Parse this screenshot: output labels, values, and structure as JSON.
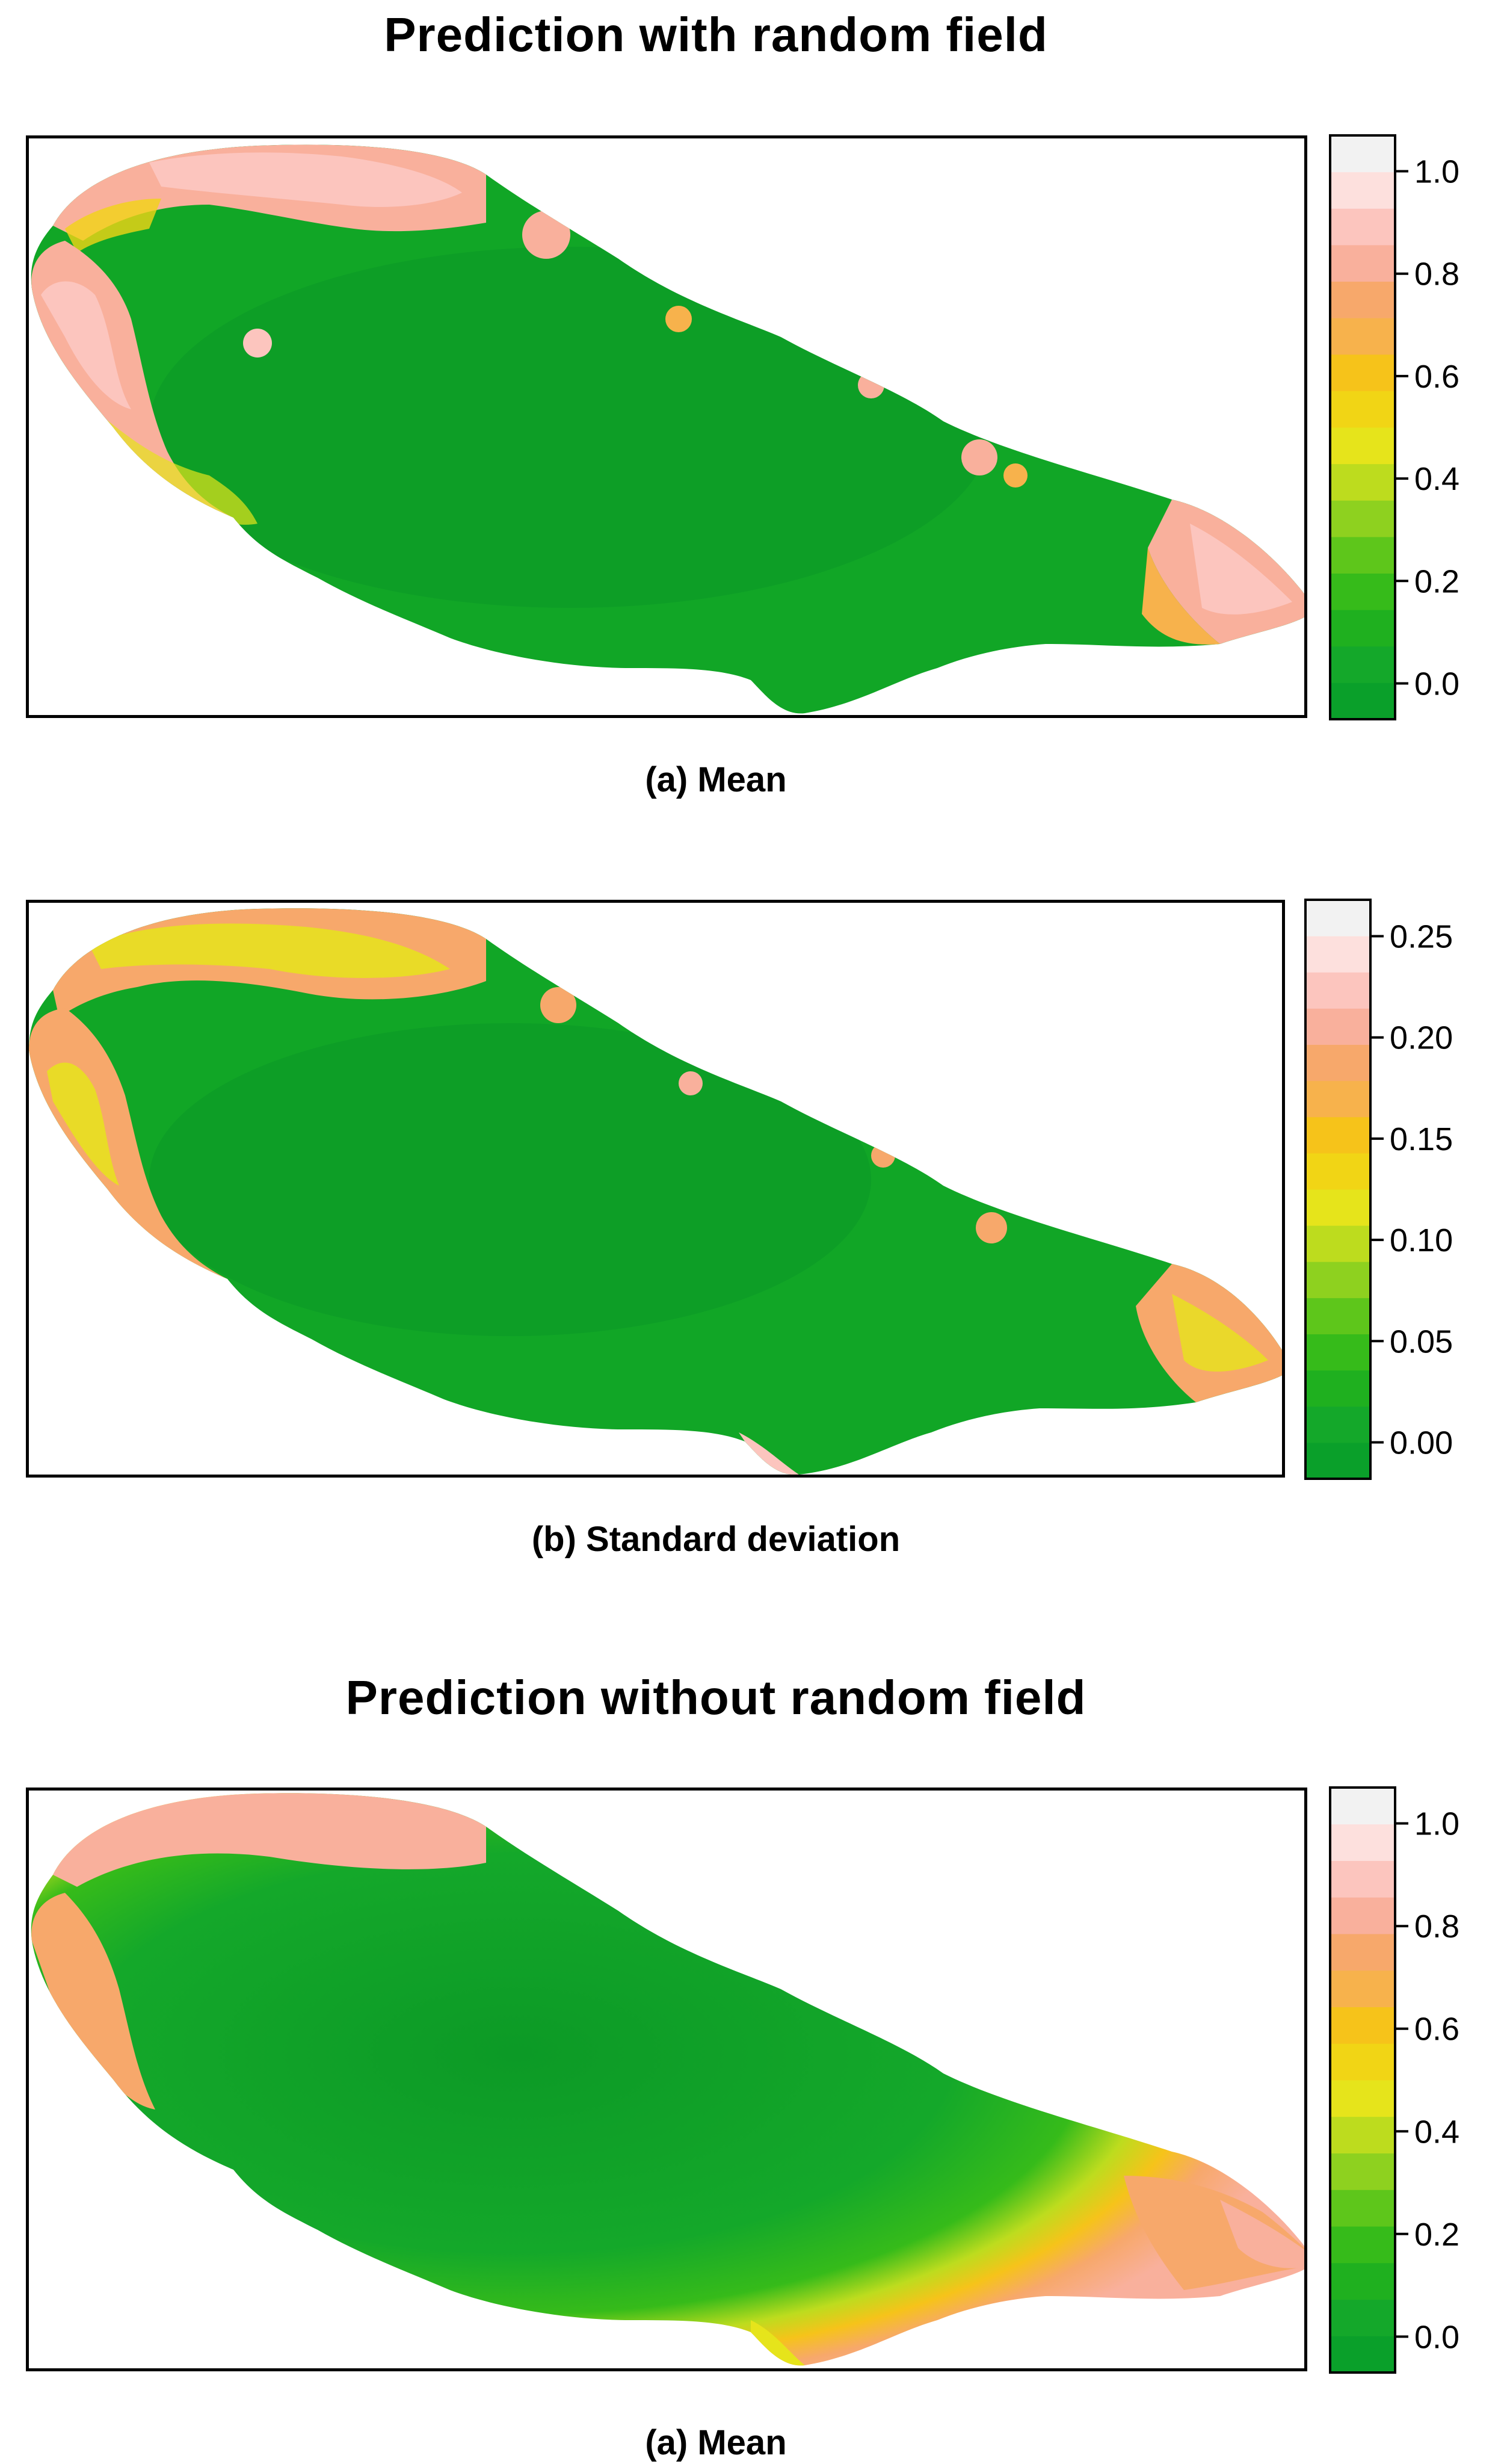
{
  "figure": {
    "section_1_title": "Prediction with random field",
    "section_2_title": "Prediction without random field"
  },
  "colors": {
    "palette": [
      "#0aa02a",
      "#14a82a",
      "#1fb01f",
      "#36bb1a",
      "#5ec61b",
      "#8ed11f",
      "#bddc1e",
      "#e6e41b",
      "#f1d515",
      "#f6c31a",
      "#f7b24c",
      "#f7a86b",
      "#f9b09c",
      "#fcc5be",
      "#fde0dd",
      "#f2f2f2"
    ],
    "background_land": "#11a626",
    "deep_green": "#0c9a26"
  },
  "chart_data": [
    {
      "type": "heatmap",
      "title": "Prediction with random field",
      "caption": "(a) Mean",
      "quantity": "mean predicted probability",
      "legend_ticks": [
        "1.0",
        "0.8",
        "0.6",
        "0.4",
        "0.2",
        "0.0"
      ],
      "legend_range": [
        -0.07,
        1.07
      ],
      "legend_tick_values": [
        1.0,
        0.8,
        0.6,
        0.4,
        0.2,
        0.0
      ],
      "description": "Values near 0 over most of the lake interior; high values (0.8-1.0) along the northern and western shoreline and at the eastern tip"
    },
    {
      "type": "heatmap",
      "title": "Prediction with random field",
      "caption": "(b) Standard deviation",
      "quantity": "standard deviation",
      "legend_ticks": [
        "0.25",
        "0.20",
        "0.15",
        "0.10",
        "0.05",
        "0.00"
      ],
      "legend_range": [
        -0.018,
        0.268
      ],
      "legend_tick_values": [
        0.25,
        0.2,
        0.15,
        0.1,
        0.05,
        0.0
      ],
      "description": "Low uncertainty in the interior; higher (0.15-0.25) along the shoreline"
    },
    {
      "type": "heatmap",
      "title": "Prediction without random field",
      "caption": "(a) Mean",
      "quantity": "mean predicted probability",
      "legend_ticks": [
        "1.0",
        "0.8",
        "0.6",
        "0.4",
        "0.2",
        "0.0"
      ],
      "legend_range": [
        -0.07,
        1.07
      ],
      "legend_tick_values": [
        1.0,
        0.8,
        0.6,
        0.4,
        0.2,
        0.0
      ],
      "description": "Smoother gradient: low values in interior, rising toward shorelines with a broad band of 0.6-0.9 along the west and north"
    }
  ]
}
